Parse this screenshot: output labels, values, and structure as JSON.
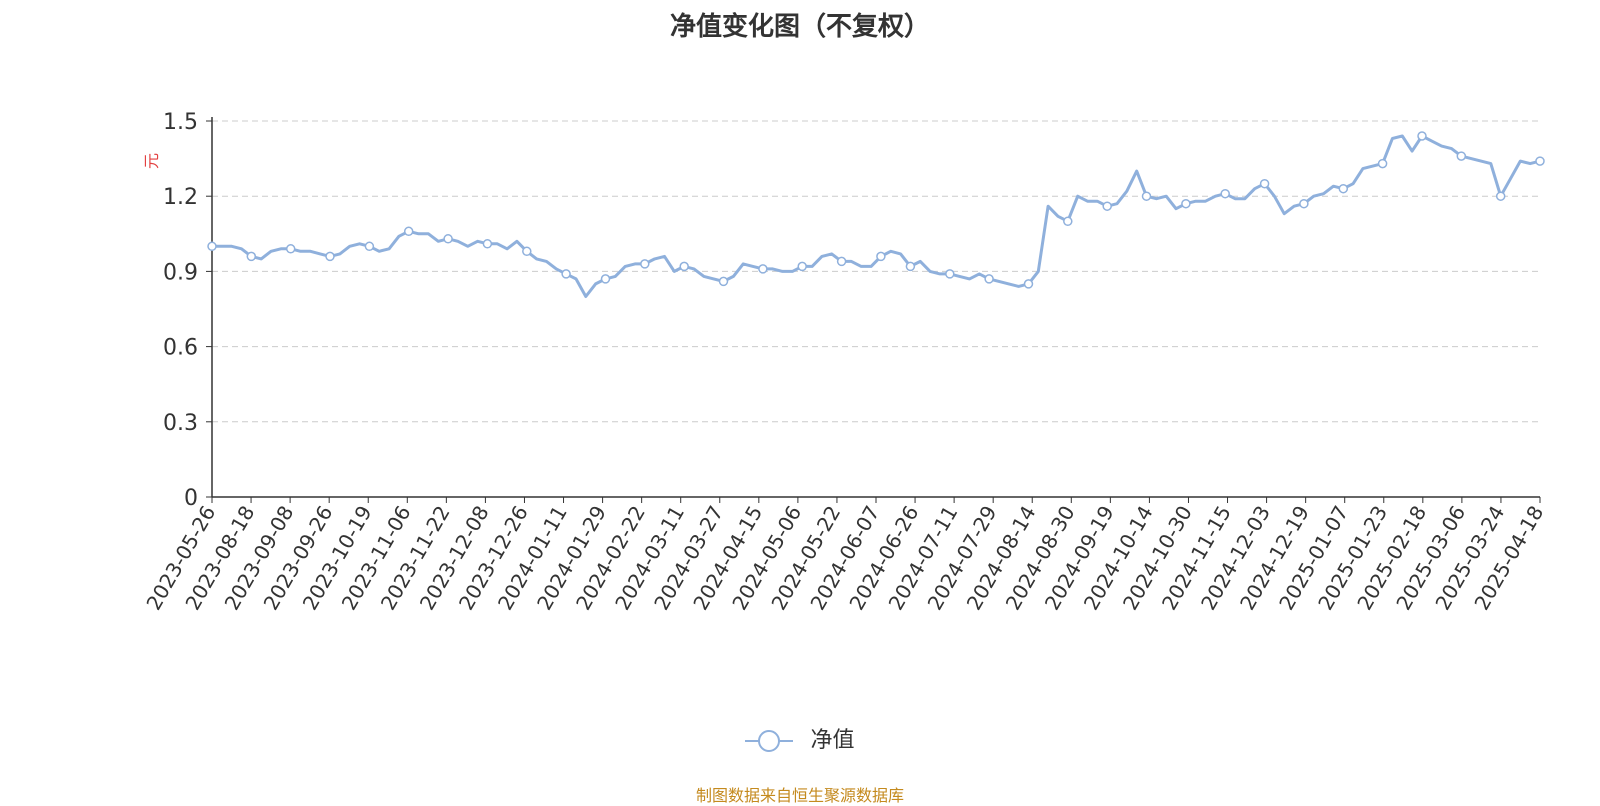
{
  "colors": {
    "line": "#8fb0dc",
    "axis": "#333333",
    "grid": "#cccccc",
    "unit": "#e34040",
    "source": "#c48a1e"
  },
  "source_note": "制图数据来自恒生聚源数据库",
  "chart_data": {
    "type": "line",
    "title": "净值变化图（不复权）",
    "ylabel": "元",
    "ylim": [
      0,
      1.5
    ],
    "yticks": [
      "0",
      "0.3",
      "0.6",
      "0.9",
      "1.2",
      "1.5"
    ],
    "grid": true,
    "legend_position": "bottom",
    "x_tick_labels": [
      "2023-05-26",
      "2023-08-18",
      "2023-09-08",
      "2023-09-26",
      "2023-10-19",
      "2023-11-06",
      "2023-11-22",
      "2023-12-08",
      "2023-12-26",
      "2024-01-11",
      "2024-01-29",
      "2024-02-22",
      "2024-03-11",
      "2024-03-27",
      "2024-04-15",
      "2024-05-06",
      "2024-05-22",
      "2024-06-07",
      "2024-06-26",
      "2024-07-11",
      "2024-07-29",
      "2024-08-14",
      "2024-08-30",
      "2024-09-19",
      "2024-10-14",
      "2024-10-30",
      "2024-11-15",
      "2024-12-03",
      "2024-12-19",
      "2025-01-07",
      "2025-01-23",
      "2025-02-18",
      "2025-03-06",
      "2025-03-24",
      "2025-04-18"
    ],
    "series": [
      {
        "name": "净值",
        "values": [
          1.0,
          1.0,
          1.0,
          0.99,
          0.96,
          0.95,
          0.98,
          0.99,
          0.99,
          0.98,
          0.98,
          0.97,
          0.96,
          0.97,
          1.0,
          1.01,
          1.0,
          0.98,
          0.99,
          1.04,
          1.06,
          1.05,
          1.05,
          1.02,
          1.03,
          1.02,
          1.0,
          1.02,
          1.01,
          1.01,
          0.99,
          1.02,
          0.98,
          0.95,
          0.94,
          0.91,
          0.89,
          0.87,
          0.8,
          0.85,
          0.87,
          0.88,
          0.92,
          0.93,
          0.93,
          0.95,
          0.96,
          0.9,
          0.92,
          0.91,
          0.88,
          0.87,
          0.86,
          0.88,
          0.93,
          0.92,
          0.91,
          0.91,
          0.9,
          0.9,
          0.92,
          0.92,
          0.96,
          0.97,
          0.94,
          0.94,
          0.92,
          0.92,
          0.96,
          0.98,
          0.97,
          0.92,
          0.94,
          0.9,
          0.89,
          0.89,
          0.88,
          0.87,
          0.89,
          0.87,
          0.86,
          0.85,
          0.84,
          0.85,
          0.9,
          1.16,
          1.12,
          1.1,
          1.2,
          1.18,
          1.18,
          1.16,
          1.17,
          1.22,
          1.3,
          1.2,
          1.19,
          1.2,
          1.15,
          1.17,
          1.18,
          1.18,
          1.2,
          1.21,
          1.19,
          1.19,
          1.23,
          1.25,
          1.2,
          1.13,
          1.16,
          1.17,
          1.2,
          1.21,
          1.24,
          1.23,
          1.25,
          1.31,
          1.32,
          1.33,
          1.43,
          1.44,
          1.38,
          1.44,
          1.42,
          1.4,
          1.39,
          1.36,
          1.35,
          1.34,
          1.33,
          1.2,
          1.27,
          1.34,
          1.33,
          1.34
        ]
      }
    ]
  }
}
